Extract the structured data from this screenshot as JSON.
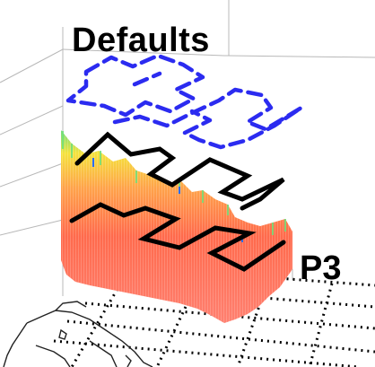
{
  "labels": {
    "title": "Defaults",
    "profile": "P3"
  },
  "colors": {
    "default_path": "#2b2bf0",
    "flight_path": "#000000",
    "curtain_low": "#ff5a4a",
    "curtain_mid": "#ffb347",
    "curtain_high": "#f5e23c",
    "curtain_top": "#6fe07a",
    "grid": "#b8b8b8",
    "ground_dots": "#000000",
    "coastline": "#222222"
  },
  "icons": {
    "map": "coastline-map-icon"
  }
}
